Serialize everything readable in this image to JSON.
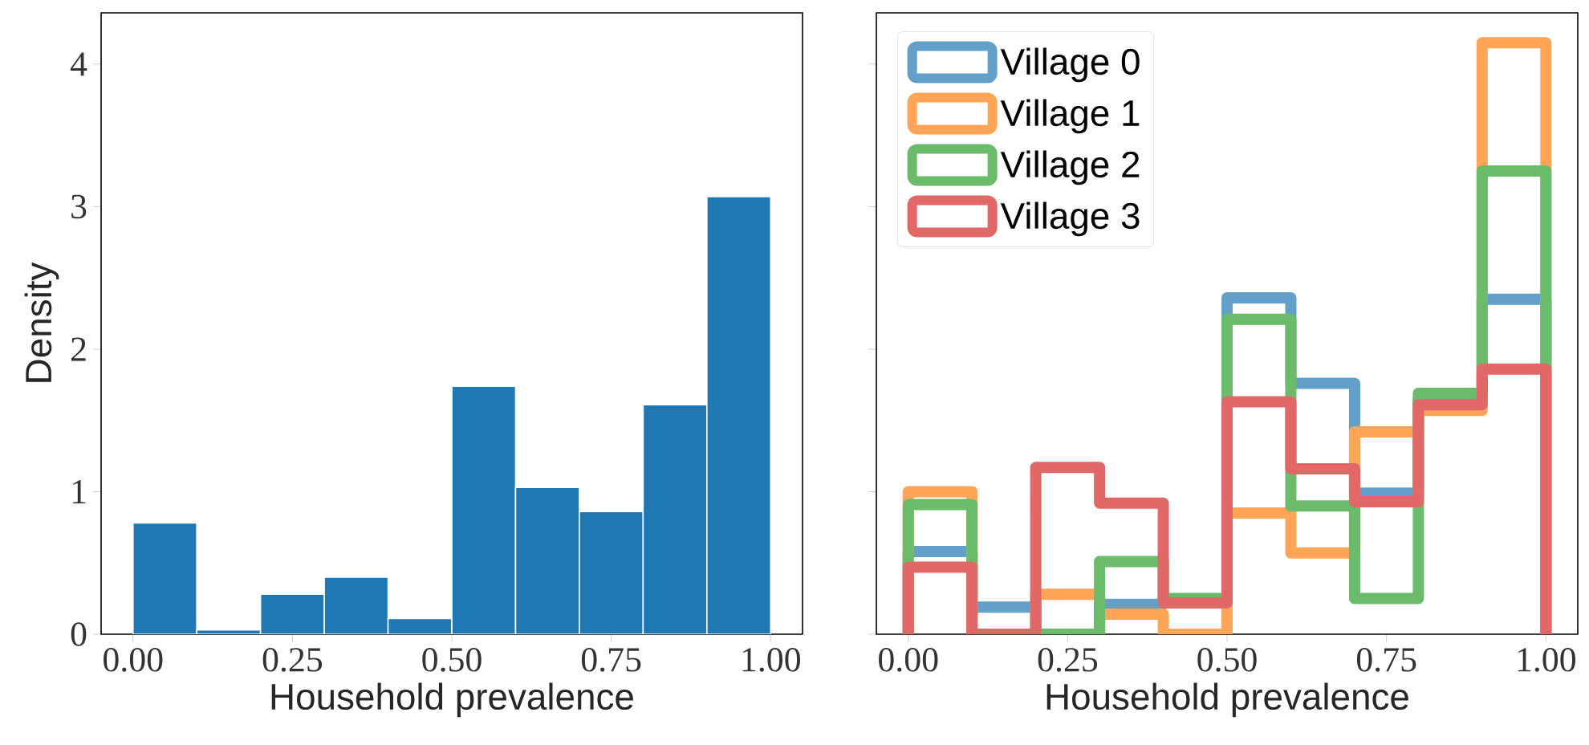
{
  "chart_data": [
    {
      "type": "histogram",
      "xlabel": "Household prevalence",
      "ylabel": "Density",
      "color": "#1f77b4",
      "bins": [
        0,
        0.1,
        0.2,
        0.3,
        0.4,
        0.5,
        0.6,
        0.7,
        0.8,
        0.9,
        1.0
      ],
      "values": [
        0.78,
        0.03,
        0.28,
        0.4,
        0.11,
        1.74,
        1.03,
        0.86,
        1.61,
        3.07
      ],
      "xlim": [
        -0.05,
        1.05
      ],
      "ylim": [
        0,
        4.36
      ],
      "xticks": [
        {
          "value": 0,
          "label": "0.00"
        },
        {
          "value": 0.25,
          "label": "0.25"
        },
        {
          "value": 0.5,
          "label": "0.50"
        },
        {
          "value": 0.75,
          "label": "0.75"
        },
        {
          "value": 1,
          "label": "1.00"
        }
      ],
      "yticks": [
        0,
        1,
        2,
        3,
        4
      ]
    },
    {
      "type": "histogram",
      "xlabel": "Household prevalence",
      "legend": "top left",
      "tick_labels": "x",
      "bins": [
        0,
        0.1,
        0.2,
        0.3,
        0.4,
        0.5,
        0.6,
        0.7,
        0.8,
        0.9,
        1.0
      ],
      "series": [
        {
          "name": "Village 0",
          "color": "#62a0ca",
          "values": [
            0.58,
            0.19,
            0,
            0.21,
            0.24,
            2.36,
            1.76,
            0.99,
            1.65,
            2.35
          ]
        },
        {
          "name": "Village 1",
          "color": "#ffa557",
          "values": [
            1.0,
            0,
            0.28,
            0.14,
            0,
            0.85,
            0.57,
            1.42,
            1.57,
            4.15
          ]
        },
        {
          "name": "Village 2",
          "color": "#6abc6a",
          "values": [
            0.91,
            0,
            0,
            0.51,
            0.25,
            2.21,
            0.9,
            0.25,
            1.69,
            3.25
          ]
        },
        {
          "name": "Village 3",
          "color": "#e26868",
          "values": [
            0.47,
            0,
            1.17,
            0.92,
            0.22,
            1.63,
            1.16,
            0.93,
            1.61,
            1.86
          ]
        }
      ],
      "xlim": [
        -0.05,
        1.05
      ],
      "ylim": [
        0,
        4.36
      ],
      "xticks": [
        {
          "value": 0,
          "label": "0.00"
        },
        {
          "value": 0.25,
          "label": "0.25"
        },
        {
          "value": 0.5,
          "label": "0.50"
        },
        {
          "value": 0.75,
          "label": "0.75"
        },
        {
          "value": 1,
          "label": "1.00"
        }
      ],
      "yticks": [
        0,
        1,
        2,
        3,
        4
      ]
    }
  ]
}
